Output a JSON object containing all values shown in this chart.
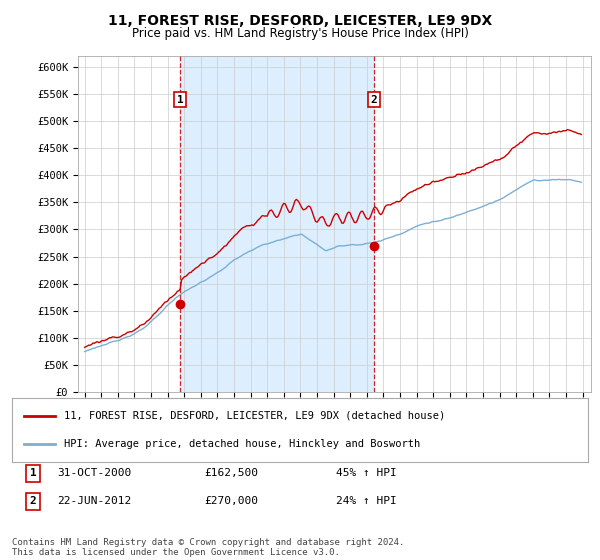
{
  "title": "11, FOREST RISE, DESFORD, LEICESTER, LE9 9DX",
  "subtitle": "Price paid vs. HM Land Registry's House Price Index (HPI)",
  "ylim": [
    0,
    620000
  ],
  "yticks": [
    0,
    50000,
    100000,
    150000,
    200000,
    250000,
    300000,
    350000,
    400000,
    450000,
    500000,
    550000,
    600000
  ],
  "ytick_labels": [
    "£0",
    "£50K",
    "£100K",
    "£150K",
    "£200K",
    "£250K",
    "£300K",
    "£350K",
    "£400K",
    "£450K",
    "£500K",
    "£550K",
    "£600K"
  ],
  "legend_red": "11, FOREST RISE, DESFORD, LEICESTER, LE9 9DX (detached house)",
  "legend_blue": "HPI: Average price, detached house, Hinckley and Bosworth",
  "footer": "Contains HM Land Registry data © Crown copyright and database right 2024.\nThis data is licensed under the Open Government Licence v3.0.",
  "sale1_label": "1",
  "sale1_date": "31-OCT-2000",
  "sale1_price": "£162,500",
  "sale1_hpi": "45% ↑ HPI",
  "sale2_label": "2",
  "sale2_date": "22-JUN-2012",
  "sale2_price": "£270,000",
  "sale2_hpi": "24% ↑ HPI",
  "red_color": "#cc0000",
  "blue_color": "#7bafd4",
  "shade_color": "#ddeeff",
  "vline_color": "#cc0000",
  "background_color": "#ffffff",
  "grid_color": "#cccccc",
  "sale1_year": 2000.833,
  "sale2_year": 2012.458
}
